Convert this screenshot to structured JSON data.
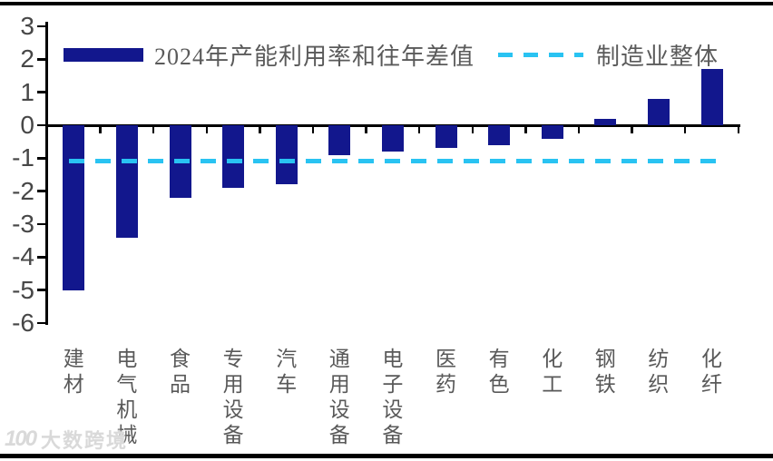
{
  "chart_data": {
    "type": "bar",
    "title": "",
    "categories": [
      "建材",
      "电气机械",
      "食品",
      "专用设备",
      "汽车",
      "通用设备",
      "电子设备",
      "医药",
      "有色",
      "化工",
      "钢铁",
      "纺织",
      "化纤"
    ],
    "values": [
      -5.0,
      -3.4,
      -2.2,
      -1.9,
      -1.8,
      -0.9,
      -0.8,
      -0.7,
      -0.6,
      -0.4,
      0.2,
      0.8,
      1.7
    ],
    "series_label": "2024年产能利用率和往年差值",
    "baseline": {
      "label": "制造业整体",
      "value": -1.1
    },
    "xlabel": "",
    "ylabel": "",
    "ylim": [
      -6,
      3
    ],
    "yticks": [
      3,
      2,
      1,
      0,
      -1,
      -2,
      -3,
      -4,
      -5,
      -6
    ],
    "grid": false,
    "legend_position": "top",
    "bar_color": "#12178d",
    "baseline_color": "#29c3f2",
    "axis_color": "#000000",
    "tick_label_color": "#474747",
    "category_label_color": "#595959"
  },
  "legend": {
    "bar_label": "2024年产能利用率和往年差值",
    "line_label": "制造业整体"
  },
  "watermark": {
    "logo_text": "100",
    "brand_text": "大数跨境"
  }
}
